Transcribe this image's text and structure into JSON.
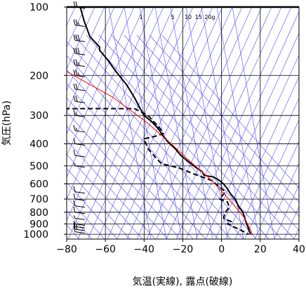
{
  "chart_data": {
    "type": "line",
    "title": "",
    "xlabel": "気温(実線), 露点(破線)",
    "ylabel": "気圧(hPa)",
    "x_ticks": [
      "−80",
      "−60",
      "−40",
      "−20",
      "0",
      "20",
      "40"
    ],
    "y_ticks": [
      "100",
      "200",
      "300",
      "400",
      "500",
      "600",
      "700",
      "800",
      "900",
      "1000"
    ],
    "xlim": [
      -80,
      40
    ],
    "ylim": [
      1050,
      100
    ],
    "y_scale": "log",
    "grid": true,
    "mixing_ratio_labels": [
      "1",
      "5",
      "10",
      "15",
      "20g"
    ],
    "colors": {
      "temperature": "#000000",
      "dewpoint": "#000000",
      "reference": "#ff0000",
      "isotherm": "#4a4aff",
      "grid": "#000000"
    },
    "series": [
      {
        "id": "temperature",
        "style": "solid",
        "points": [
          [
            -73,
            100
          ],
          [
            -71,
            115
          ],
          [
            -68,
            135
          ],
          [
            -63,
            150
          ],
          [
            -63,
            155
          ],
          [
            -59,
            170
          ],
          [
            -55,
            190
          ],
          [
            -49,
            220
          ],
          [
            -45,
            250
          ],
          [
            -42,
            280
          ],
          [
            -40,
            300
          ],
          [
            -36,
            320
          ],
          [
            -33,
            340
          ],
          [
            -31,
            360
          ],
          [
            -29,
            380
          ],
          [
            -28,
            390
          ],
          [
            -24,
            420
          ],
          [
            -21,
            450
          ],
          [
            -17,
            480
          ],
          [
            -13,
            510
          ],
          [
            -10,
            530
          ],
          [
            -9,
            550
          ],
          [
            -4,
            560
          ],
          [
            -1,
            580
          ],
          [
            1,
            600
          ],
          [
            3,
            630
          ],
          [
            4,
            650
          ],
          [
            5,
            670
          ],
          [
            7,
            700
          ],
          [
            9,
            760
          ],
          [
            11,
            800
          ],
          [
            12,
            850
          ],
          [
            13,
            900
          ],
          [
            14,
            950
          ],
          [
            15,
            1000
          ]
        ]
      },
      {
        "id": "dewpoint",
        "style": "dashed",
        "points": [
          [
            -81,
            280
          ],
          [
            -45,
            280
          ],
          [
            -38,
            300
          ],
          [
            -32,
            340
          ],
          [
            -30,
            360
          ],
          [
            -34,
            370
          ],
          [
            -40,
            380
          ],
          [
            -38,
            420
          ],
          [
            -34,
            460
          ],
          [
            -31,
            490
          ],
          [
            -22,
            510
          ],
          [
            -15,
            540
          ],
          [
            -5,
            580
          ],
          [
            -3,
            600
          ],
          [
            2,
            650
          ],
          [
            -1,
            700
          ],
          [
            3,
            720
          ],
          [
            4,
            760
          ],
          [
            2,
            800
          ],
          [
            1,
            850
          ],
          [
            5,
            880
          ],
          [
            3,
            900
          ],
          [
            9,
            950
          ],
          [
            14,
            1000
          ]
        ]
      },
      {
        "id": "reference",
        "style": "solid",
        "points": [
          [
            -81,
            190
          ],
          [
            -56,
            250
          ],
          [
            -39,
            320
          ],
          [
            -26,
            400
          ],
          [
            -16,
            480
          ],
          [
            -5,
            580
          ],
          [
            5,
            720
          ],
          [
            12,
            850
          ],
          [
            16,
            1000
          ]
        ]
      }
    ],
    "wind_barbs": [
      {
        "p": 100,
        "speed": 20
      },
      {
        "p": 120,
        "speed": 25
      },
      {
        "p": 140,
        "speed": 30
      },
      {
        "p": 160,
        "speed": 30
      },
      {
        "p": 180,
        "speed": 25
      },
      {
        "p": 200,
        "speed": 25
      },
      {
        "p": 230,
        "speed": 20
      },
      {
        "p": 260,
        "speed": 20
      },
      {
        "p": 300,
        "speed": 15
      },
      {
        "p": 350,
        "speed": 15
      },
      {
        "p": 400,
        "speed": 10
      },
      {
        "p": 450,
        "speed": 10
      },
      {
        "p": 500,
        "speed": 5
      },
      {
        "p": 650,
        "speed": 10
      },
      {
        "p": 700,
        "speed": 10
      },
      {
        "p": 750,
        "speed": 10
      },
      {
        "p": 800,
        "speed": 10
      },
      {
        "p": 850,
        "speed": 5
      },
      {
        "p": 900,
        "speed": 5
      },
      {
        "p": 925,
        "speed": 15
      },
      {
        "p": 950,
        "speed": 15
      },
      {
        "p": 975,
        "speed": 10
      }
    ]
  }
}
